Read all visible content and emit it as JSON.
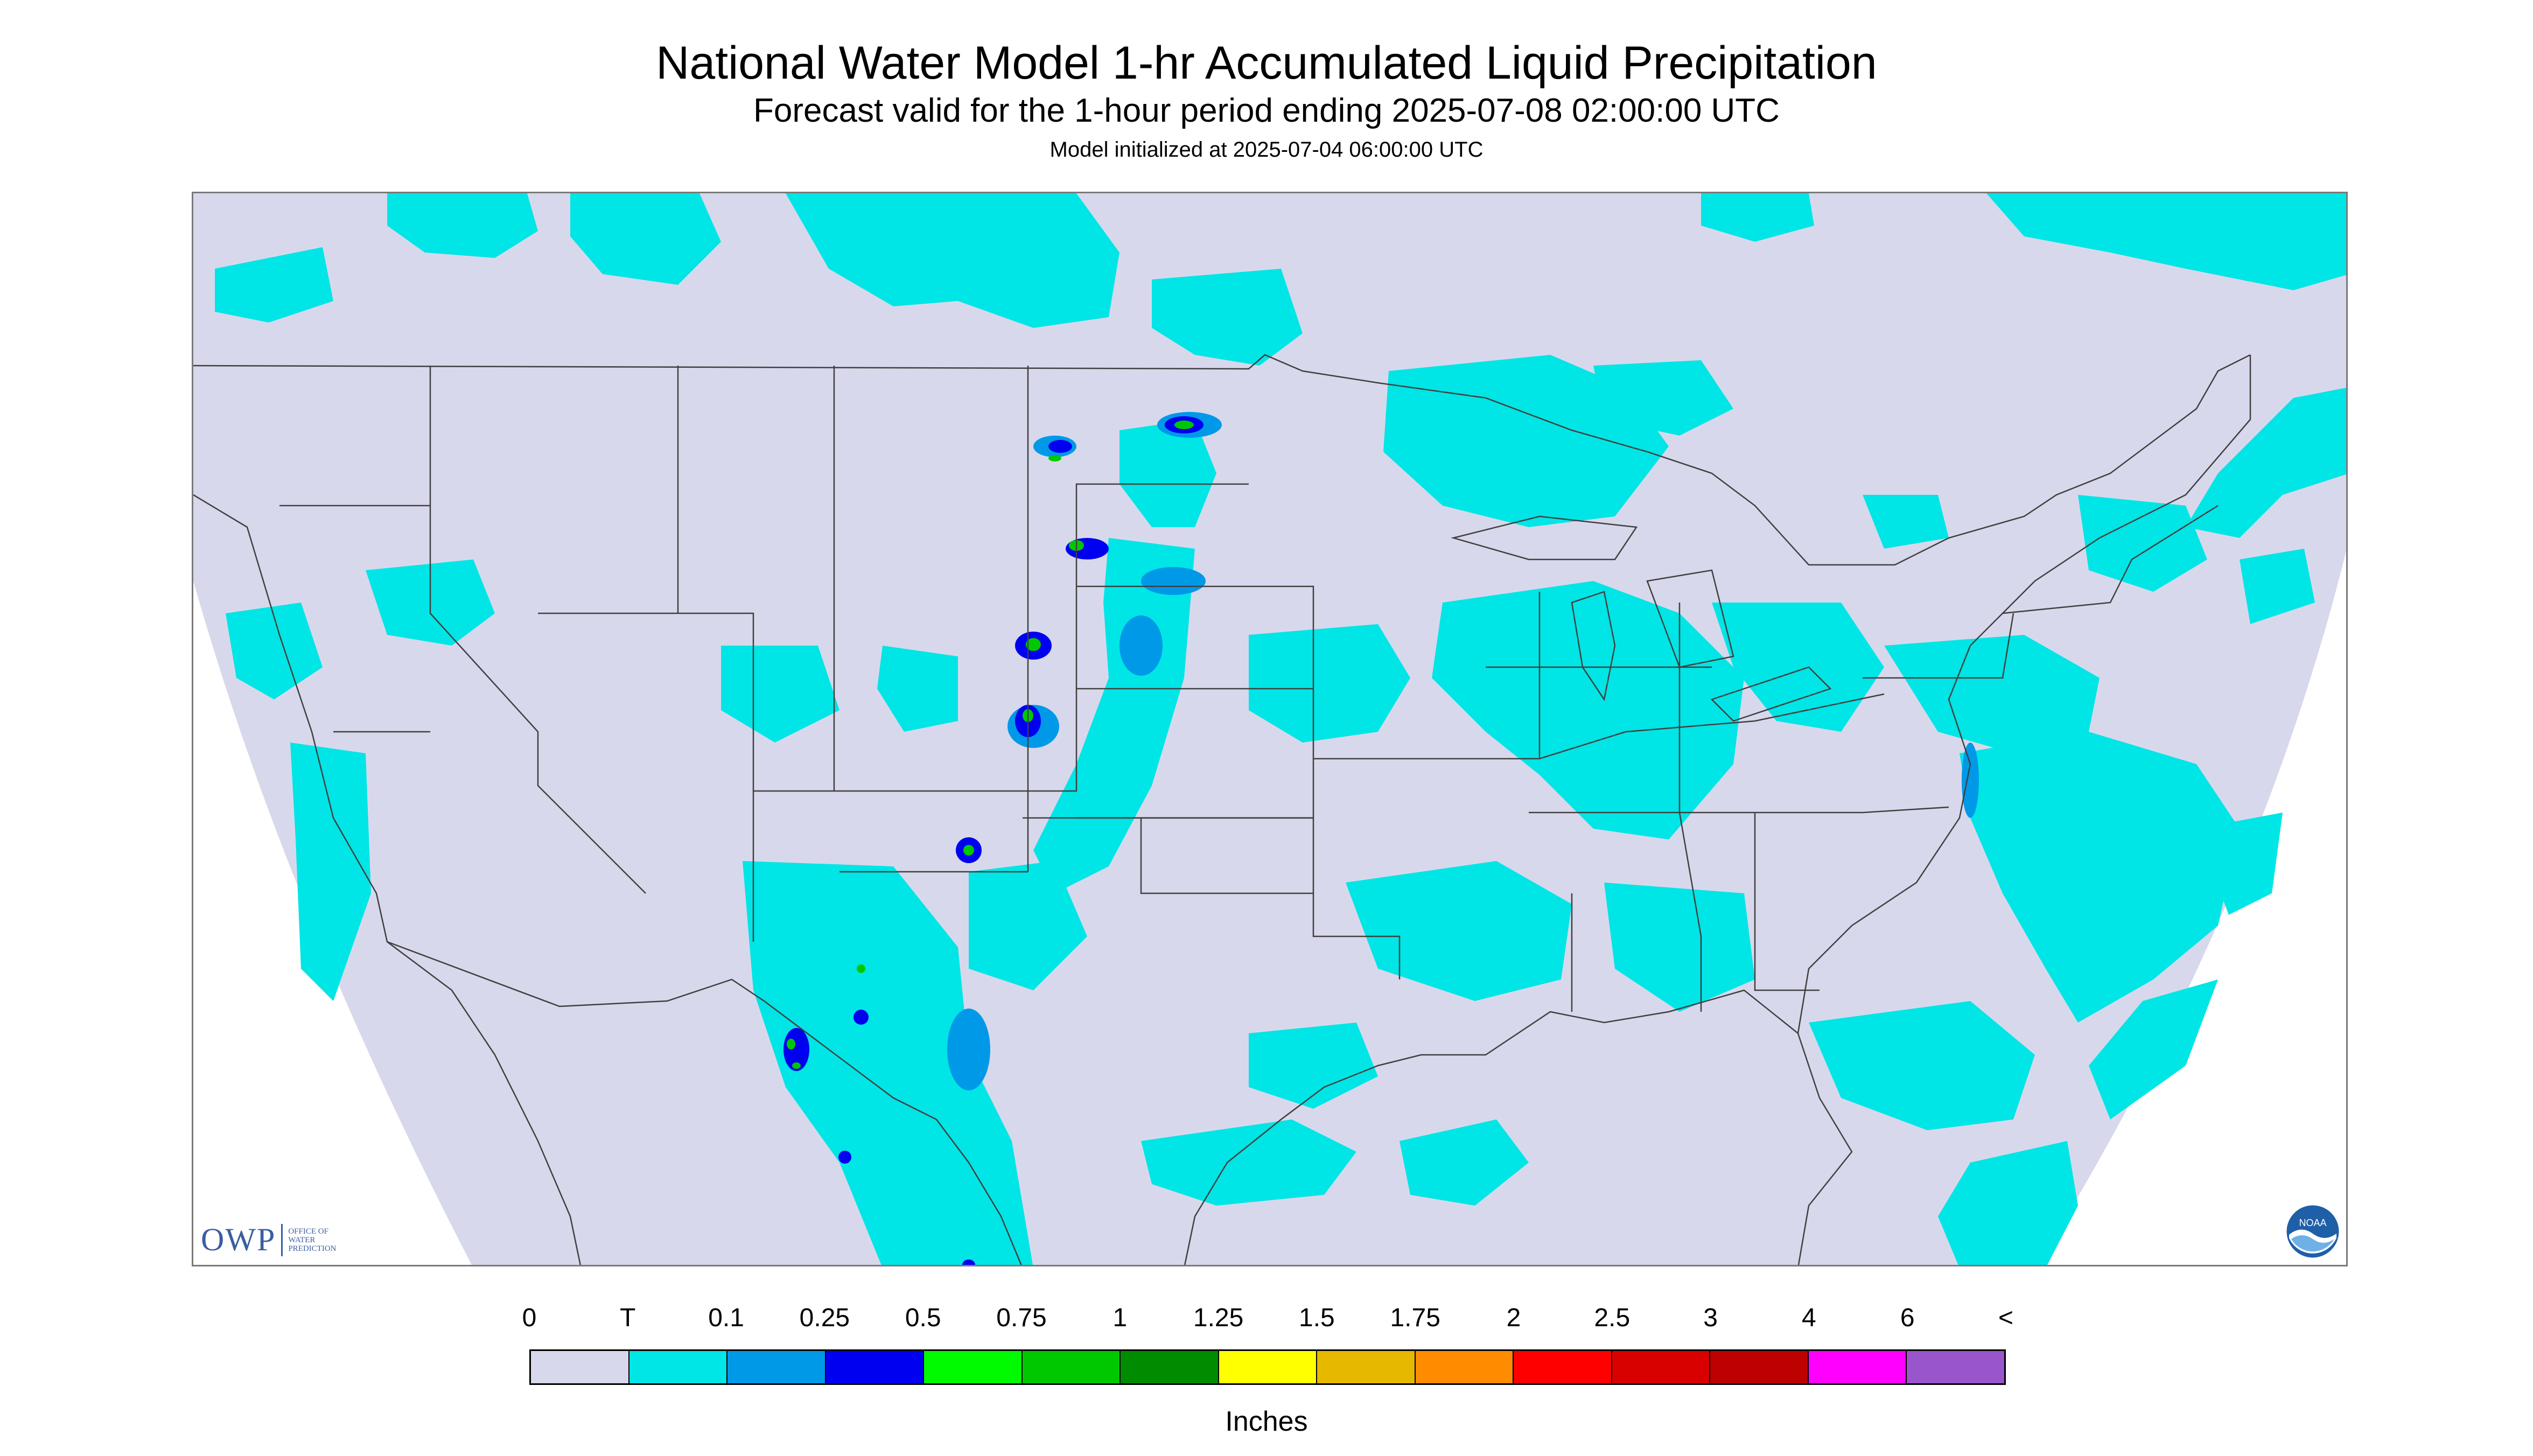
{
  "header": {
    "title": "National Water Model 1-hr Accumulated Liquid Precipitation",
    "subtitle": "Forecast valid for the 1-hour period ending 2025-07-08 02:00:00 UTC",
    "init": "Model initialized at 2025-07-04 06:00:00 UTC"
  },
  "logos": {
    "owp_letters": "OWP",
    "owp_text": "OFFICE OF WATER PREDICTION",
    "noaa_text": "NOAA"
  },
  "legend": {
    "ticks": [
      "0",
      "T",
      "0.1",
      "0.25",
      "0.5",
      "0.75",
      "1",
      "1.25",
      "1.5",
      "1.75",
      "2",
      "2.5",
      "3",
      "4",
      "6",
      "<"
    ],
    "colors": [
      "#d8d8ec",
      "#00e5e5",
      "#0099e8",
      "#0000f0",
      "#00fa00",
      "#00c800",
      "#008c00",
      "#ffff00",
      "#e6b800",
      "#ff8c00",
      "#ff0000",
      "#d90000",
      "#bd0000",
      "#ff00ff",
      "#9955cc"
    ],
    "units": "Inches"
  },
  "map": {
    "background_color": "#d8d8ec",
    "outside_color": "#ffffff",
    "trace_color": "#00e5e5",
    "light_color": "#0099e8",
    "moderate_color": "#0000f0",
    "heavy_color": "#00c800",
    "border_color": "#404040"
  }
}
